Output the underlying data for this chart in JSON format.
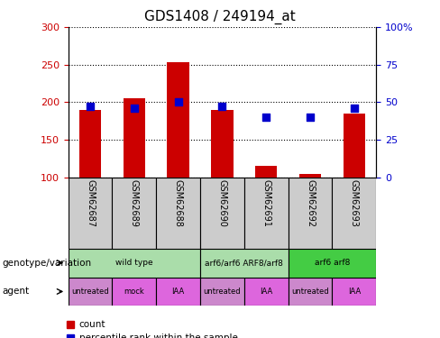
{
  "title": "GDS1408 / 249194_at",
  "samples": [
    "GSM62687",
    "GSM62689",
    "GSM62688",
    "GSM62690",
    "GSM62691",
    "GSM62692",
    "GSM62693"
  ],
  "count_values": [
    190,
    205,
    253,
    190,
    115,
    105,
    185
  ],
  "count_base": 100,
  "percentile_values": [
    47,
    46,
    50,
    47,
    40,
    40,
    46
  ],
  "ylim_left": [
    100,
    300
  ],
  "ylim_right": [
    0,
    100
  ],
  "yticks_left": [
    100,
    150,
    200,
    250,
    300
  ],
  "yticks_right": [
    0,
    25,
    50,
    75,
    100
  ],
  "bar_color": "#cc0000",
  "dot_color": "#0000cc",
  "bar_width": 0.5,
  "genotype_groups": [
    {
      "label": "wild type",
      "start": 0,
      "end": 3,
      "color": "#aaddaa"
    },
    {
      "label": "arf6/arf6 ARF8/arf8",
      "start": 3,
      "end": 5,
      "color": "#aaddaa"
    },
    {
      "label": "arf6 arf8",
      "start": 5,
      "end": 7,
      "color": "#44cc44"
    }
  ],
  "agent_groups": [
    {
      "label": "untreated",
      "start": 0,
      "end": 1,
      "color": "#cc88cc"
    },
    {
      "label": "mock",
      "start": 1,
      "end": 2,
      "color": "#dd66dd"
    },
    {
      "label": "IAA",
      "start": 2,
      "end": 3,
      "color": "#dd66dd"
    },
    {
      "label": "untreated",
      "start": 3,
      "end": 4,
      "color": "#cc88cc"
    },
    {
      "label": "IAA",
      "start": 4,
      "end": 5,
      "color": "#dd66dd"
    },
    {
      "label": "untreated",
      "start": 5,
      "end": 6,
      "color": "#cc88cc"
    },
    {
      "label": "IAA",
      "start": 6,
      "end": 7,
      "color": "#dd66dd"
    }
  ],
  "legend_items": [
    {
      "label": "count",
      "color": "#cc0000"
    },
    {
      "label": "percentile rank within the sample",
      "color": "#0000cc"
    }
  ],
  "left_label_color": "#cc0000",
  "right_label_color": "#0000cc",
  "sample_bg_color": "#cccccc",
  "fig_width": 4.88,
  "fig_height": 3.75,
  "dpi": 100
}
